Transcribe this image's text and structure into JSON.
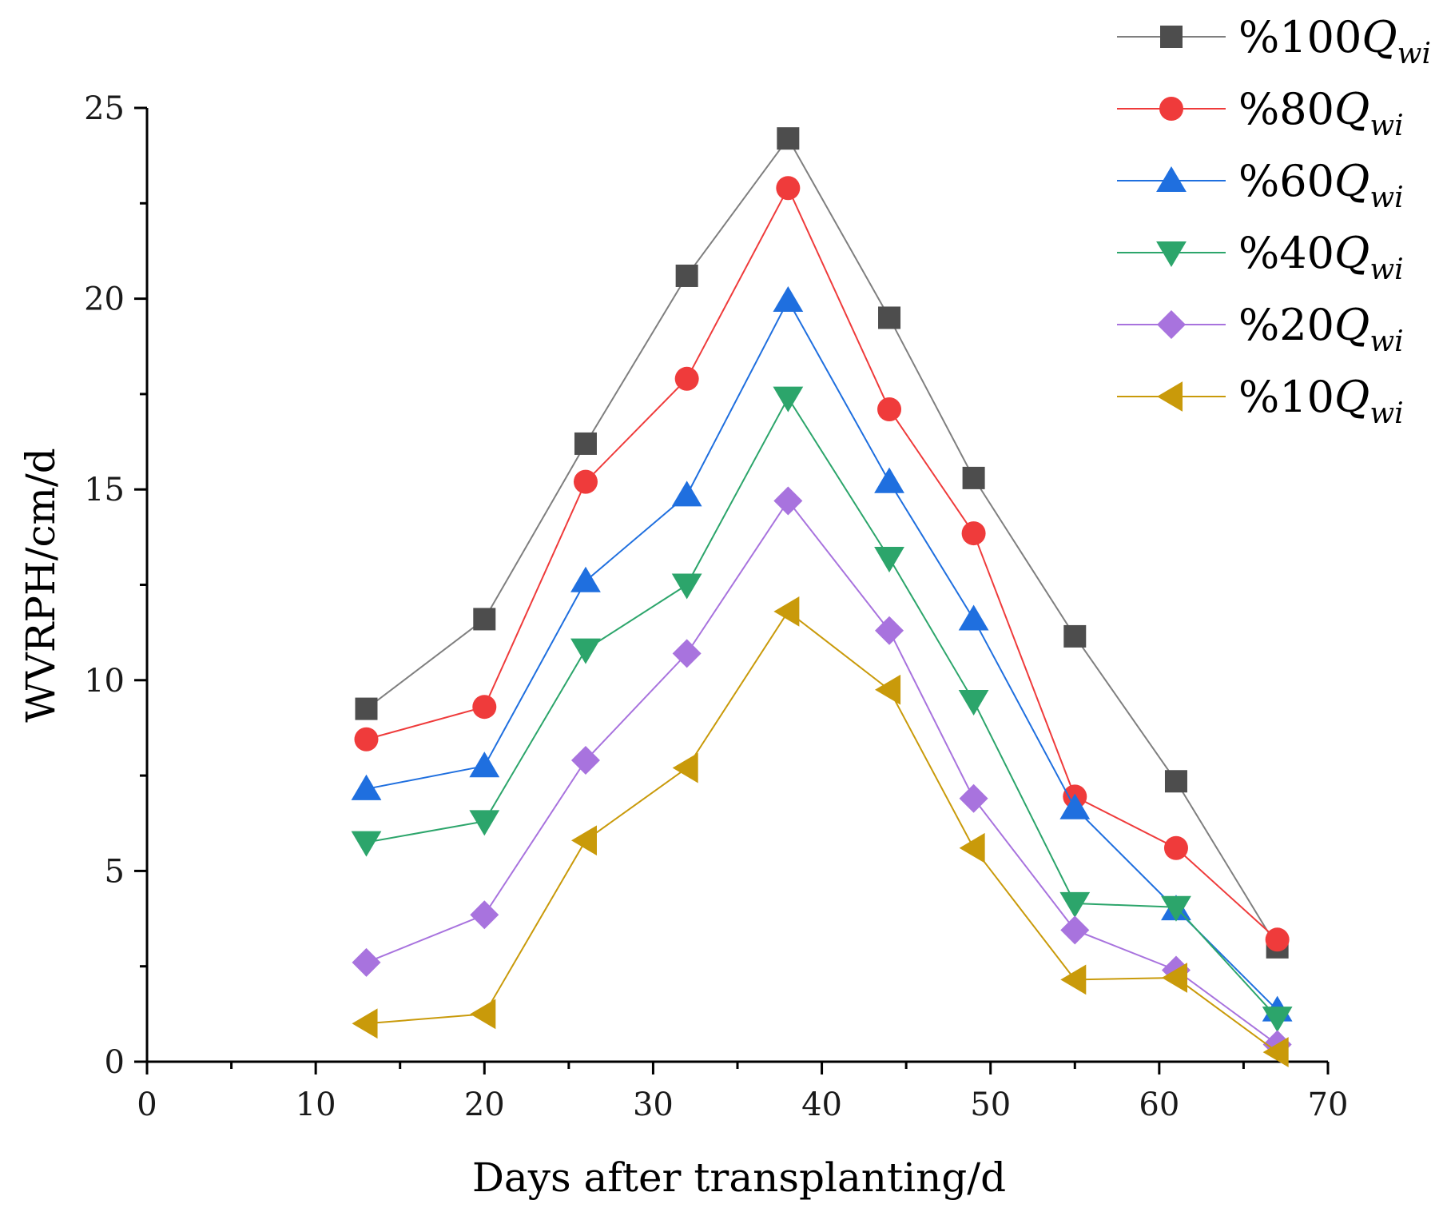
{
  "chart_data": {
    "type": "line",
    "title": "",
    "xlabel": "Days after transplanting/d",
    "ylabel": "WVRPH/cm/d",
    "xlim": [
      0,
      70
    ],
    "ylim": [
      0,
      25
    ],
    "xticks": [
      0,
      10,
      20,
      30,
      40,
      50,
      60,
      70
    ],
    "yticks": [
      0,
      5,
      10,
      15,
      20,
      25
    ],
    "grid": false,
    "legend_position": "top-right",
    "x": [
      13,
      20,
      26,
      32,
      38,
      44,
      49,
      55,
      61,
      67
    ],
    "series": [
      {
        "name": "%100Q_wi",
        "label_prefix": "%100",
        "label_var": "Q",
        "label_sub": "wi",
        "color": "#4d4d4d",
        "line_color": "#7f7f7f",
        "marker": "square",
        "values": [
          9.25,
          11.6,
          16.2,
          20.6,
          24.2,
          19.5,
          15.3,
          11.15,
          7.35,
          3.0
        ]
      },
      {
        "name": "%80Q_wi",
        "label_prefix": "%80",
        "label_var": "Q",
        "label_sub": "wi",
        "color": "#ef3b3b",
        "line_color": "#ef3b3b",
        "marker": "circle",
        "values": [
          8.45,
          9.3,
          15.2,
          17.9,
          22.9,
          17.1,
          13.85,
          6.95,
          5.6,
          3.2
        ]
      },
      {
        "name": "%60Q_wi",
        "label_prefix": "%60",
        "label_var": "Q",
        "label_sub": "wi",
        "color": "#1f6fdf",
        "line_color": "#1f6fdf",
        "marker": "triangle-up",
        "values": [
          7.15,
          7.75,
          12.6,
          14.85,
          19.95,
          15.2,
          11.6,
          6.65,
          4.0,
          1.35
        ]
      },
      {
        "name": "%40Q_wi",
        "label_prefix": "%40",
        "label_var": "Q",
        "label_sub": "wi",
        "color": "#2ca56b",
        "line_color": "#2ca56b",
        "marker": "triangle-down",
        "values": [
          5.75,
          6.3,
          10.8,
          12.5,
          17.4,
          13.2,
          9.45,
          4.15,
          4.05,
          1.15
        ]
      },
      {
        "name": "%20Q_wi",
        "label_prefix": "%20",
        "label_var": "Q",
        "label_sub": "wi",
        "color": "#a873de",
        "line_color": "#a873de",
        "marker": "diamond",
        "values": [
          2.6,
          3.85,
          7.9,
          10.7,
          14.7,
          11.3,
          6.9,
          3.45,
          2.4,
          0.45
        ]
      },
      {
        "name": "%10Q_wi",
        "label_prefix": "%10",
        "label_var": "Q",
        "label_sub": "wi",
        "color": "#c99a0a",
        "line_color": "#c99a0a",
        "marker": "triangle-left",
        "values": [
          1.0,
          1.25,
          5.8,
          7.7,
          11.8,
          9.75,
          5.6,
          2.15,
          2.2,
          0.25
        ]
      }
    ]
  }
}
